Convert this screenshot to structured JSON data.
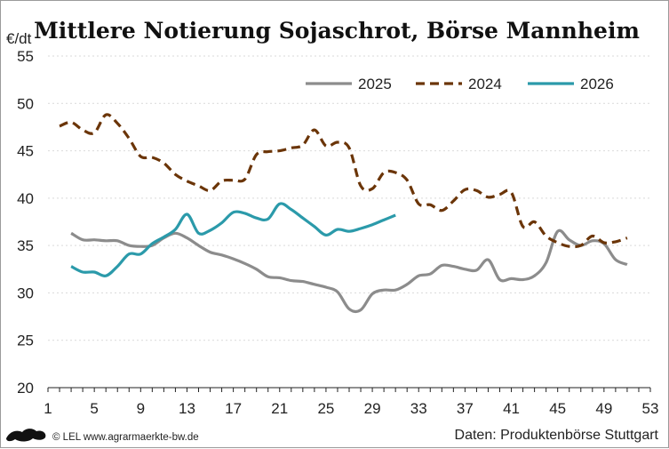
{
  "chart_data": {
    "type": "line",
    "title": "Mittlere Notierung Sojaschrot, Börse Mannheim",
    "ylabel": "€/dt",
    "xlim": [
      1,
      53
    ],
    "ylim": [
      20,
      55
    ],
    "x_ticks": [
      1,
      5,
      9,
      13,
      17,
      21,
      25,
      29,
      33,
      37,
      41,
      45,
      49,
      53
    ],
    "y_ticks": [
      20,
      25,
      30,
      35,
      40,
      45,
      50,
      55
    ],
    "grid": "horizontal",
    "legend_position": "top-right",
    "series": [
      {
        "name": "2025",
        "color": "#8c8c8c",
        "style": "solid",
        "points": [
          [
            3,
            36.3
          ],
          [
            4,
            35.6
          ],
          [
            5,
            35.6
          ],
          [
            6,
            35.5
          ],
          [
            7,
            35.5
          ],
          [
            8,
            35.0
          ],
          [
            9,
            34.9
          ],
          [
            10,
            35.0
          ],
          [
            11,
            35.8
          ],
          [
            12,
            36.3
          ],
          [
            13,
            35.8
          ],
          [
            14,
            35.0
          ],
          [
            15,
            34.3
          ],
          [
            16,
            34.0
          ],
          [
            17,
            33.6
          ],
          [
            18,
            33.1
          ],
          [
            19,
            32.5
          ],
          [
            20,
            31.7
          ],
          [
            21,
            31.6
          ],
          [
            22,
            31.3
          ],
          [
            23,
            31.2
          ],
          [
            24,
            30.9
          ],
          [
            25,
            30.6
          ],
          [
            26,
            30.1
          ],
          [
            27,
            28.3
          ],
          [
            28,
            28.2
          ],
          [
            29,
            29.9
          ],
          [
            30,
            30.3
          ],
          [
            31,
            30.3
          ],
          [
            32,
            30.9
          ],
          [
            33,
            31.8
          ],
          [
            34,
            32.0
          ],
          [
            35,
            32.9
          ],
          [
            36,
            32.8
          ],
          [
            37,
            32.5
          ],
          [
            38,
            32.4
          ],
          [
            39,
            33.5
          ],
          [
            40,
            31.4
          ],
          [
            41,
            31.5
          ],
          [
            42,
            31.4
          ],
          [
            43,
            31.8
          ],
          [
            44,
            33.2
          ],
          [
            45,
            36.5
          ],
          [
            46,
            35.6
          ],
          [
            47,
            35.0
          ],
          [
            48,
            35.5
          ],
          [
            49,
            35.2
          ],
          [
            50,
            33.5
          ],
          [
            51,
            33.0
          ]
        ]
      },
      {
        "name": "2024",
        "color": "#6b3508",
        "style": "dashed",
        "points": [
          [
            2,
            47.6
          ],
          [
            3,
            48.0
          ],
          [
            4,
            47.2
          ],
          [
            5,
            46.9
          ],
          [
            6,
            48.8
          ],
          [
            7,
            47.9
          ],
          [
            8,
            46.3
          ],
          [
            9,
            44.4
          ],
          [
            10,
            44.3
          ],
          [
            11,
            43.7
          ],
          [
            12,
            42.5
          ],
          [
            13,
            41.8
          ],
          [
            14,
            41.3
          ],
          [
            15,
            40.8
          ],
          [
            16,
            41.8
          ],
          [
            17,
            41.9
          ],
          [
            18,
            42.0
          ],
          [
            19,
            44.6
          ],
          [
            20,
            44.9
          ],
          [
            21,
            45.0
          ],
          [
            22,
            45.3
          ],
          [
            23,
            45.6
          ],
          [
            24,
            47.2
          ],
          [
            25,
            45.5
          ],
          [
            26,
            45.9
          ],
          [
            27,
            45.3
          ],
          [
            28,
            41.3
          ],
          [
            29,
            41.0
          ],
          [
            30,
            42.7
          ],
          [
            31,
            42.7
          ],
          [
            32,
            41.9
          ],
          [
            33,
            39.4
          ],
          [
            34,
            39.3
          ],
          [
            35,
            38.7
          ],
          [
            36,
            39.7
          ],
          [
            37,
            40.9
          ],
          [
            38,
            40.8
          ],
          [
            39,
            40.1
          ],
          [
            40,
            40.4
          ],
          [
            41,
            40.6
          ],
          [
            42,
            37.0
          ],
          [
            43,
            37.5
          ],
          [
            44,
            36.0
          ],
          [
            45,
            35.3
          ],
          [
            46,
            34.9
          ],
          [
            47,
            35.0
          ],
          [
            48,
            36.0
          ],
          [
            49,
            35.3
          ],
          [
            50,
            35.4
          ],
          [
            51,
            35.8
          ]
        ]
      },
      {
        "name": "2026",
        "color": "#2b9aaa",
        "style": "solid",
        "points": [
          [
            3,
            32.8
          ],
          [
            4,
            32.2
          ],
          [
            5,
            32.2
          ],
          [
            6,
            31.8
          ],
          [
            7,
            32.8
          ],
          [
            8,
            34.1
          ],
          [
            9,
            34.1
          ],
          [
            10,
            35.2
          ],
          [
            11,
            35.9
          ],
          [
            12,
            36.7
          ],
          [
            13,
            38.3
          ],
          [
            14,
            36.3
          ],
          [
            15,
            36.6
          ],
          [
            16,
            37.4
          ],
          [
            17,
            38.5
          ],
          [
            18,
            38.4
          ],
          [
            19,
            37.9
          ],
          [
            20,
            37.8
          ],
          [
            21,
            39.4
          ],
          [
            22,
            38.8
          ],
          [
            23,
            37.9
          ],
          [
            24,
            37.0
          ],
          [
            25,
            36.1
          ],
          [
            26,
            36.7
          ],
          [
            27,
            36.5
          ],
          [
            28,
            36.8
          ],
          [
            29,
            37.2
          ],
          [
            30,
            37.7
          ],
          [
            31,
            38.2
          ]
        ]
      }
    ]
  },
  "footer": {
    "credit": "© LEL www.agrarmaerkte-bw.de",
    "source": "Daten: Produktenbörse Stuttgart"
  }
}
